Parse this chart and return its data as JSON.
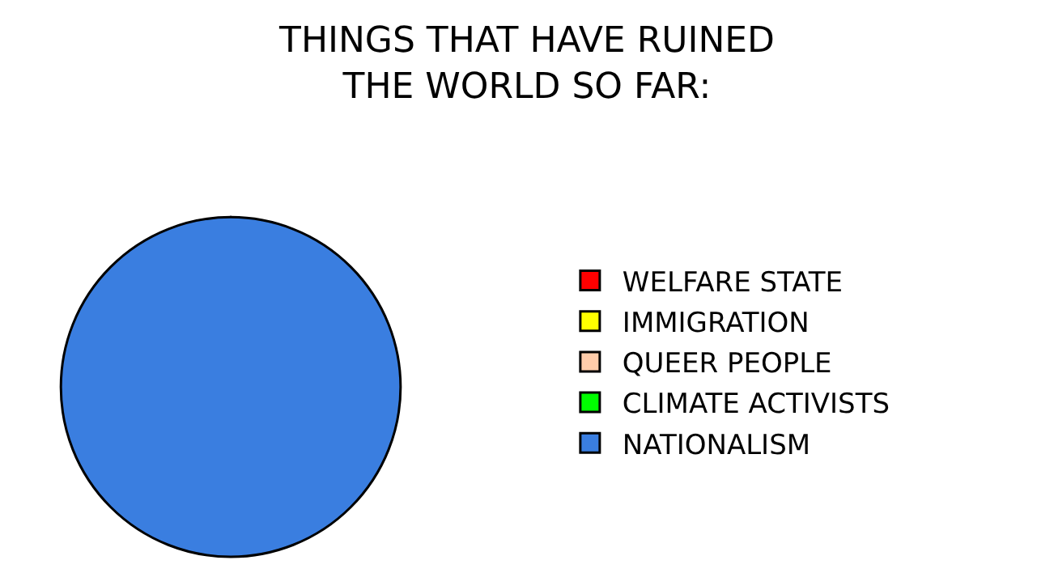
{
  "chart_data": {
    "type": "pie",
    "title": "THINGS THAT HAVE RUINED\nTHE WORLD SO FAR:",
    "categories": [
      "WELFARE STATE",
      "IMMIGRATION",
      "QUEER PEOPLE",
      "CLIMATE ACTIVISTS",
      "NATIONALISM"
    ],
    "values": [
      0,
      0,
      0,
      0,
      100
    ],
    "colors": [
      "#ff0000",
      "#ffff00",
      "#ffccaa",
      "#00ff00",
      "#3a7ee0"
    ],
    "legend": "right"
  }
}
